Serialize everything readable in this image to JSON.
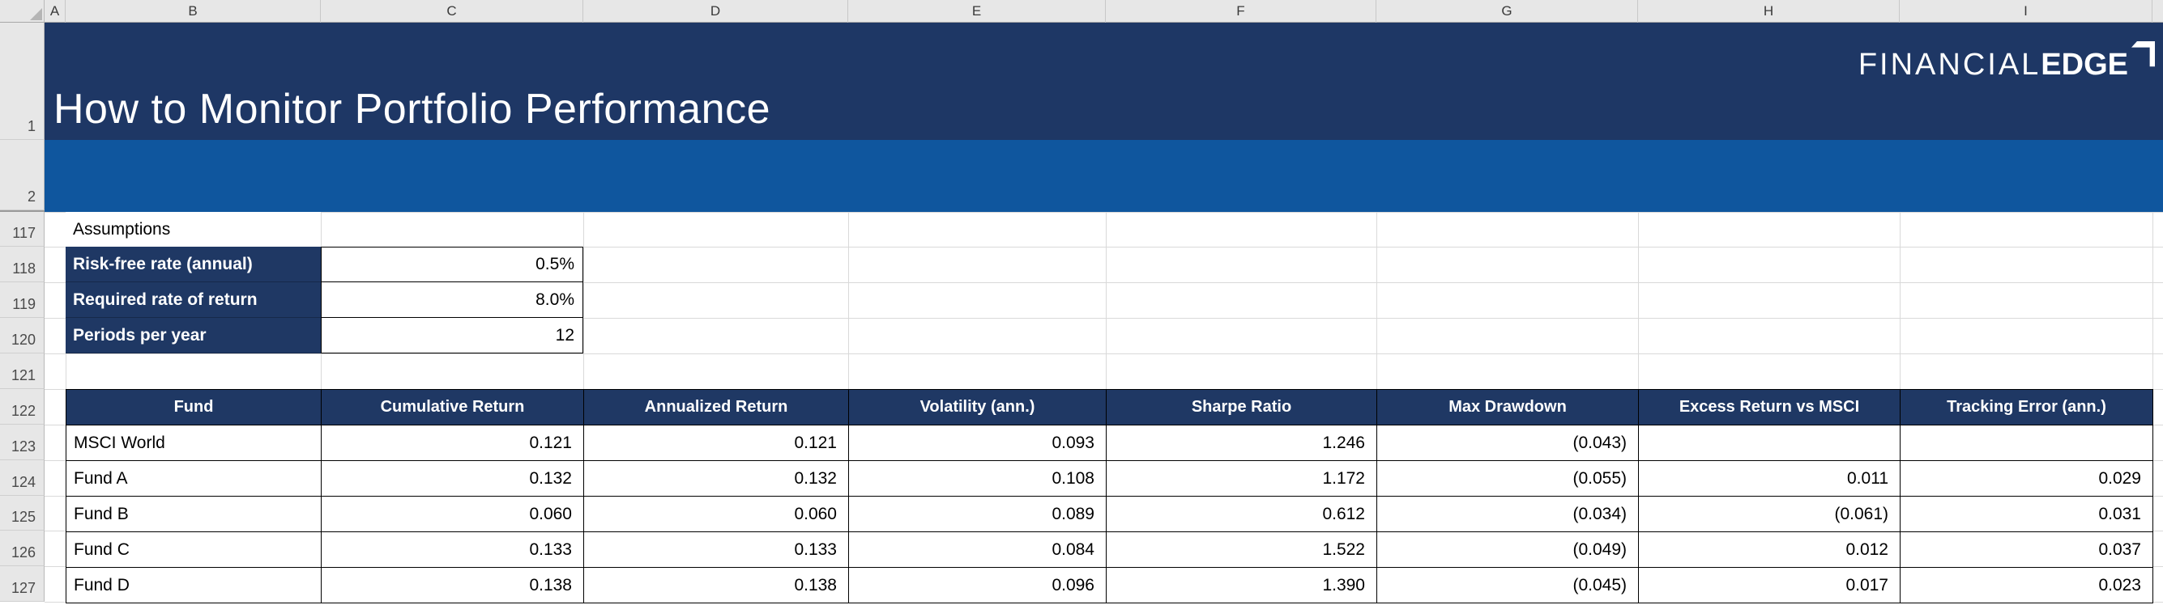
{
  "sheet": {
    "column_headers": [
      "A",
      "B",
      "C",
      "D",
      "E",
      "F",
      "G",
      "H",
      "I"
    ],
    "row_headers": [
      "1",
      "2",
      "117",
      "118",
      "119",
      "120",
      "121",
      "122",
      "123",
      "124",
      "125",
      "126",
      "127"
    ]
  },
  "banner": {
    "title": "How to Monitor Portfolio Performance",
    "logo": {
      "part1": "FINANCIAL",
      "part2": "EDGE",
      "mark": "corner-arrow"
    }
  },
  "assumptions": {
    "section_label": "Assumptions",
    "rows": [
      {
        "label": "Risk-free rate (annual)",
        "value": "0.5%"
      },
      {
        "label": "Required rate of return",
        "value": "8.0%"
      },
      {
        "label": "Periods per year",
        "value": "12"
      }
    ]
  },
  "table": {
    "headers": [
      "Fund",
      "Cumulative Return",
      "Annualized Return",
      "Volatility (ann.)",
      "Sharpe Ratio",
      "Max Drawdown",
      "Excess Return vs MSCI",
      "Tracking Error (ann.)"
    ],
    "rows": [
      {
        "fund": "MSCI World",
        "values": [
          "0.121",
          "0.121",
          "0.093",
          "1.246",
          "(0.043)",
          "",
          ""
        ]
      },
      {
        "fund": "Fund A",
        "values": [
          "0.132",
          "0.132",
          "0.108",
          "1.172",
          "(0.055)",
          "0.011",
          "0.029"
        ]
      },
      {
        "fund": "Fund B",
        "values": [
          "0.060",
          "0.060",
          "0.089",
          "0.612",
          "(0.034)",
          "(0.061)",
          "0.031"
        ]
      },
      {
        "fund": "Fund C",
        "values": [
          "0.133",
          "0.133",
          "0.084",
          "1.522",
          "(0.049)",
          "0.012",
          "0.037"
        ]
      },
      {
        "fund": "Fund D",
        "values": [
          "0.138",
          "0.138",
          "0.096",
          "1.390",
          "(0.045)",
          "0.017",
          "0.023"
        ]
      }
    ]
  },
  "colors": {
    "banner_navy": "#1E3765",
    "header_navy": "#1F3864",
    "band_blue": "#0F569E",
    "cell_border": "#000000",
    "gridline": "#D9D9D9",
    "gutter_bg": "#E7E7E7",
    "title_text": "#FFFFFF"
  }
}
